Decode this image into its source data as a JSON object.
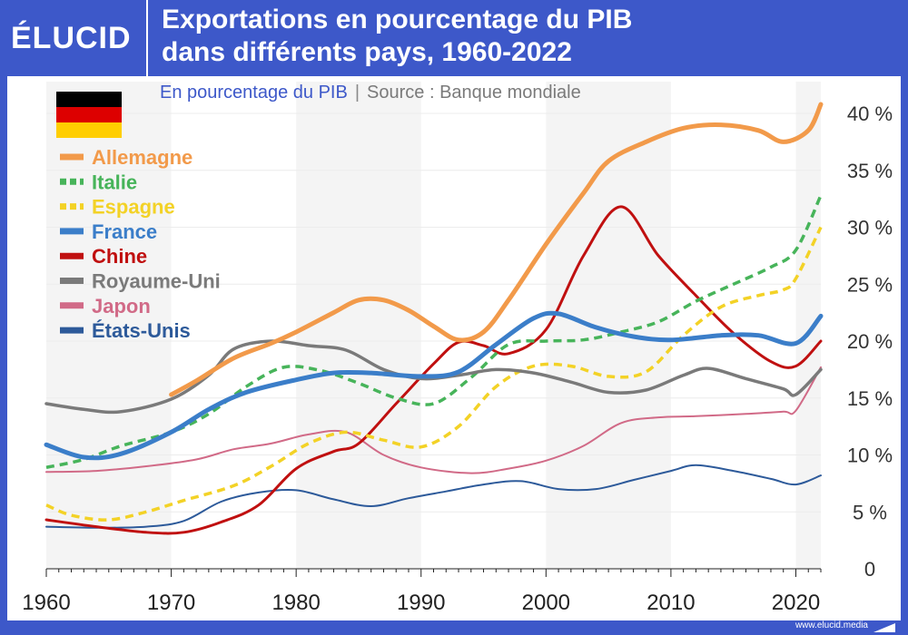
{
  "header": {
    "logo": "ÉLUCID",
    "title_line1": "Exportations en pourcentage du PIB",
    "title_line2": "dans différents pays, 1960-2022"
  },
  "subtitle": {
    "main": "En pourcentage du PIB",
    "separator": "|",
    "source": "Source : Banque mondiale"
  },
  "footer": {
    "url": "www.elucid.media"
  },
  "flag": {
    "colors": [
      "#000000",
      "#dd0000",
      "#ffce00"
    ]
  },
  "chart_data": {
    "type": "line",
    "title": "Exportations en pourcentage du PIB dans différents pays, 1960-2022",
    "xlim": [
      1960,
      2022
    ],
    "ylim": [
      0,
      40
    ],
    "x_ticks": [
      "1960",
      "1970",
      "1980",
      "1990",
      "2000",
      "2010",
      "2020"
    ],
    "x_tick_values": [
      1960,
      1970,
      1980,
      1990,
      2000,
      2010,
      2020
    ],
    "y_ticks": [
      "0",
      "5 %",
      "10 %",
      "15 %",
      "20 %",
      "25 %",
      "30 %",
      "35 %",
      "40 %"
    ],
    "y_tick_values": [
      0,
      5,
      10,
      15,
      20,
      25,
      30,
      35,
      40
    ],
    "grid": true,
    "legend_position": "top-left",
    "shaded_decades": [
      [
        1960,
        1970
      ],
      [
        1980,
        1990
      ],
      [
        2000,
        2010
      ],
      [
        2020,
        2022
      ]
    ],
    "series": [
      {
        "name": "Allemagne",
        "color": "#f29a4a",
        "dash": "solid",
        "width": 5,
        "points": [
          [
            1970,
            15.3
          ],
          [
            1972,
            16.5
          ],
          [
            1975,
            18.5
          ],
          [
            1978,
            19.8
          ],
          [
            1980,
            20.8
          ],
          [
            1983,
            22.5
          ],
          [
            1985,
            23.6
          ],
          [
            1987,
            23.6
          ],
          [
            1989,
            22.7
          ],
          [
            1991,
            21.3
          ],
          [
            1993,
            20.1
          ],
          [
            1995,
            20.8
          ],
          [
            1997,
            23.6
          ],
          [
            2000,
            28.5
          ],
          [
            2003,
            33
          ],
          [
            2005,
            35.8
          ],
          [
            2008,
            37.5
          ],
          [
            2011,
            38.7
          ],
          [
            2014,
            39
          ],
          [
            2017,
            38.5
          ],
          [
            2019,
            37.5
          ],
          [
            2021,
            38.5
          ],
          [
            2022,
            40.8
          ]
        ]
      },
      {
        "name": "Italie",
        "color": "#47b45a",
        "dash": "dashed",
        "width": 3.5,
        "points": [
          [
            1960,
            8.9
          ],
          [
            1963,
            9.6
          ],
          [
            1966,
            10.8
          ],
          [
            1970,
            12
          ],
          [
            1973,
            13.6
          ],
          [
            1976,
            16
          ],
          [
            1979,
            17.7
          ],
          [
            1982,
            17.4
          ],
          [
            1985,
            16.3
          ],
          [
            1988,
            15
          ],
          [
            1991,
            14.5
          ],
          [
            1994,
            16.8
          ],
          [
            1997,
            19.7
          ],
          [
            2000,
            20
          ],
          [
            2003,
            20.1
          ],
          [
            2006,
            20.8
          ],
          [
            2009,
            21.7
          ],
          [
            2012,
            23.5
          ],
          [
            2015,
            25
          ],
          [
            2018,
            26.5
          ],
          [
            2020,
            28
          ],
          [
            2022,
            32.8
          ]
        ]
      },
      {
        "name": "Espagne",
        "color": "#f3d226",
        "dash": "dashed",
        "width": 3.5,
        "points": [
          [
            1960,
            5.6
          ],
          [
            1962,
            4.7
          ],
          [
            1965,
            4.3
          ],
          [
            1968,
            5
          ],
          [
            1971,
            6
          ],
          [
            1975,
            7.3
          ],
          [
            1978,
            9
          ],
          [
            1981,
            11
          ],
          [
            1984,
            12
          ],
          [
            1987,
            11.3
          ],
          [
            1990,
            10.7
          ],
          [
            1993,
            12.5
          ],
          [
            1996,
            16
          ],
          [
            1999,
            17.8
          ],
          [
            2002,
            17.8
          ],
          [
            2005,
            16.9
          ],
          [
            2008,
            17.3
          ],
          [
            2011,
            20.5
          ],
          [
            2014,
            23
          ],
          [
            2017,
            24
          ],
          [
            2019,
            24.5
          ],
          [
            2020,
            25.5
          ],
          [
            2022,
            30
          ]
        ]
      },
      {
        "name": "France",
        "color": "#3b7ec9",
        "dash": "solid",
        "width": 5,
        "points": [
          [
            1960,
            10.9
          ],
          [
            1963,
            9.8
          ],
          [
            1966,
            10.1
          ],
          [
            1970,
            12
          ],
          [
            1973,
            14
          ],
          [
            1976,
            15.5
          ],
          [
            1980,
            16.6
          ],
          [
            1983,
            17.2
          ],
          [
            1986,
            17.2
          ],
          [
            1990,
            16.9
          ],
          [
            1993,
            17.3
          ],
          [
            1996,
            19.7
          ],
          [
            1999,
            22
          ],
          [
            2001,
            22.4
          ],
          [
            2004,
            21.2
          ],
          [
            2007,
            20.4
          ],
          [
            2010,
            20.1
          ],
          [
            2014,
            20.5
          ],
          [
            2017,
            20.5
          ],
          [
            2020,
            19.8
          ],
          [
            2022,
            22.2
          ]
        ]
      },
      {
        "name": "Chine",
        "color": "#c01010",
        "dash": "solid",
        "width": 3,
        "points": [
          [
            1960,
            4.3
          ],
          [
            1964,
            3.7
          ],
          [
            1968,
            3.2
          ],
          [
            1971,
            3.2
          ],
          [
            1974,
            4.1
          ],
          [
            1977,
            5.6
          ],
          [
            1980,
            8.8
          ],
          [
            1983,
            10.3
          ],
          [
            1985,
            11
          ],
          [
            1988,
            14.5
          ],
          [
            1991,
            18
          ],
          [
            1993,
            19.9
          ],
          [
            1995,
            19.6
          ],
          [
            1997,
            18.9
          ],
          [
            2000,
            21
          ],
          [
            2003,
            27.5
          ],
          [
            2006,
            31.8
          ],
          [
            2009,
            27.5
          ],
          [
            2012,
            24
          ],
          [
            2015,
            20.7
          ],
          [
            2018,
            18.2
          ],
          [
            2020,
            17.8
          ],
          [
            2022,
            20
          ]
        ]
      },
      {
        "name": "Royaume-Uni",
        "color": "#7a7a7a",
        "dash": "solid",
        "width": 3.5,
        "points": [
          [
            1960,
            14.5
          ],
          [
            1963,
            14
          ],
          [
            1966,
            13.8
          ],
          [
            1970,
            14.9
          ],
          [
            1973,
            17
          ],
          [
            1975,
            19.3
          ],
          [
            1978,
            20
          ],
          [
            1981,
            19.6
          ],
          [
            1984,
            19.2
          ],
          [
            1987,
            17.5
          ],
          [
            1990,
            16.7
          ],
          [
            1993,
            17
          ],
          [
            1996,
            17.5
          ],
          [
            1999,
            17.2
          ],
          [
            2002,
            16.4
          ],
          [
            2005,
            15.5
          ],
          [
            2008,
            15.7
          ],
          [
            2011,
            17
          ],
          [
            2013,
            17.6
          ],
          [
            2016,
            16.7
          ],
          [
            2019,
            15.8
          ],
          [
            2020,
            15.3
          ],
          [
            2022,
            17.5
          ]
        ]
      },
      {
        "name": "Japon",
        "color": "#d16a87",
        "dash": "solid",
        "width": 2,
        "points": [
          [
            1960,
            8.5
          ],
          [
            1964,
            8.6
          ],
          [
            1968,
            9
          ],
          [
            1972,
            9.6
          ],
          [
            1975,
            10.5
          ],
          [
            1978,
            11
          ],
          [
            1981,
            11.8
          ],
          [
            1984,
            12
          ],
          [
            1987,
            10
          ],
          [
            1990,
            8.9
          ],
          [
            1994,
            8.4
          ],
          [
            1997,
            8.8
          ],
          [
            2000,
            9.5
          ],
          [
            2003,
            10.8
          ],
          [
            2006,
            12.8
          ],
          [
            2009,
            13.3
          ],
          [
            2012,
            13.4
          ],
          [
            2016,
            13.6
          ],
          [
            2019,
            13.8
          ],
          [
            2020,
            13.9
          ],
          [
            2022,
            17.7
          ]
        ]
      },
      {
        "name": "États-Unis",
        "color": "#2d5a9a",
        "dash": "solid",
        "width": 2,
        "points": [
          [
            1960,
            3.7
          ],
          [
            1964,
            3.6
          ],
          [
            1968,
            3.7
          ],
          [
            1971,
            4.2
          ],
          [
            1974,
            5.9
          ],
          [
            1977,
            6.7
          ],
          [
            1980,
            6.9
          ],
          [
            1983,
            6.1
          ],
          [
            1986,
            5.5
          ],
          [
            1989,
            6.2
          ],
          [
            1992,
            6.8
          ],
          [
            1995,
            7.4
          ],
          [
            1998,
            7.7
          ],
          [
            2001,
            7
          ],
          [
            2004,
            7
          ],
          [
            2007,
            7.8
          ],
          [
            2010,
            8.6
          ],
          [
            2012,
            9.1
          ],
          [
            2015,
            8.6
          ],
          [
            2018,
            7.9
          ],
          [
            2020,
            7.4
          ],
          [
            2022,
            8.2
          ]
        ]
      }
    ]
  }
}
